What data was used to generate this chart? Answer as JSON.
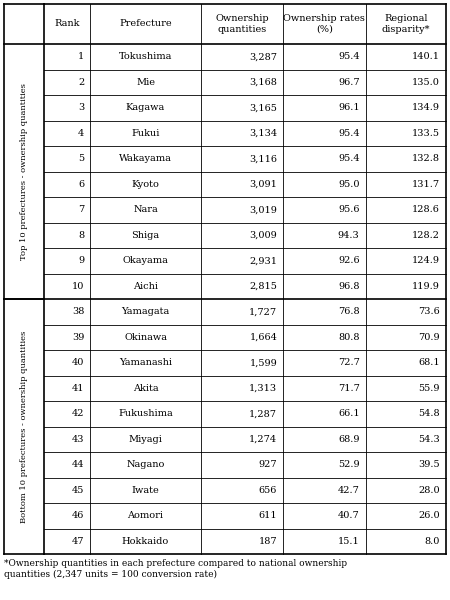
{
  "footnote": "*Ownership quantities in each prefecture compared to national ownership\nquantities (2,347 units = 100 conversion rate)",
  "col_headers": [
    "Rank",
    "Prefecture",
    "Ownership\nquantities",
    "Ownership rates\n(%)",
    "Regional\ndisparity*"
  ],
  "top_label": "Top 10 prefectures - ownership quantities",
  "bottom_label": "Bottom 10 prefectures - ownership quantities",
  "rows": [
    {
      "rank": "1",
      "prefecture": "Tokushima",
      "qty": "3,287",
      "rate": "95.4",
      "disp": "140.1"
    },
    {
      "rank": "2",
      "prefecture": "Mie",
      "qty": "3,168",
      "rate": "96.7",
      "disp": "135.0"
    },
    {
      "rank": "3",
      "prefecture": "Kagawa",
      "qty": "3,165",
      "rate": "96.1",
      "disp": "134.9"
    },
    {
      "rank": "4",
      "prefecture": "Fukui",
      "qty": "3,134",
      "rate": "95.4",
      "disp": "133.5"
    },
    {
      "rank": "5",
      "prefecture": "Wakayama",
      "qty": "3,116",
      "rate": "95.4",
      "disp": "132.8"
    },
    {
      "rank": "6",
      "prefecture": "Kyoto",
      "qty": "3,091",
      "rate": "95.0",
      "disp": "131.7"
    },
    {
      "rank": "7",
      "prefecture": "Nara",
      "qty": "3,019",
      "rate": "95.6",
      "disp": "128.6"
    },
    {
      "rank": "8",
      "prefecture": "Shiga",
      "qty": "3,009",
      "rate": "94.3",
      "disp": "128.2"
    },
    {
      "rank": "9",
      "prefecture": "Okayama",
      "qty": "2,931",
      "rate": "92.6",
      "disp": "124.9"
    },
    {
      "rank": "10",
      "prefecture": "Aichi",
      "qty": "2,815",
      "rate": "96.8",
      "disp": "119.9"
    },
    {
      "rank": "38",
      "prefecture": "Yamagata",
      "qty": "1,727",
      "rate": "76.8",
      "disp": "73.6"
    },
    {
      "rank": "39",
      "prefecture": "Okinawa",
      "qty": "1,664",
      "rate": "80.8",
      "disp": "70.9"
    },
    {
      "rank": "40",
      "prefecture": "Yamanashi",
      "qty": "1,599",
      "rate": "72.7",
      "disp": "68.1"
    },
    {
      "rank": "41",
      "prefecture": "Akita",
      "qty": "1,313",
      "rate": "71.7",
      "disp": "55.9"
    },
    {
      "rank": "42",
      "prefecture": "Fukushima",
      "qty": "1,287",
      "rate": "66.1",
      "disp": "54.8"
    },
    {
      "rank": "43",
      "prefecture": "Miyagi",
      "qty": "1,274",
      "rate": "68.9",
      "disp": "54.3"
    },
    {
      "rank": "44",
      "prefecture": "Nagano",
      "qty": "927",
      "rate": "52.9",
      "disp": "39.5"
    },
    {
      "rank": "45",
      "prefecture": "Iwate",
      "qty": "656",
      "rate": "42.7",
      "disp": "28.0"
    },
    {
      "rank": "46",
      "prefecture": "Aomori",
      "qty": "611",
      "rate": "40.7",
      "disp": "26.0"
    },
    {
      "rank": "47",
      "prefecture": "Hokkaido",
      "qty": "187",
      "rate": "15.1",
      "disp": "8.0"
    }
  ],
  "bg_color": "#ffffff",
  "line_color": "#000000",
  "text_color": "#000000",
  "header_fontsize": 7.0,
  "cell_fontsize": 7.0,
  "footnote_fontsize": 6.5,
  "label_fontsize": 6.0
}
